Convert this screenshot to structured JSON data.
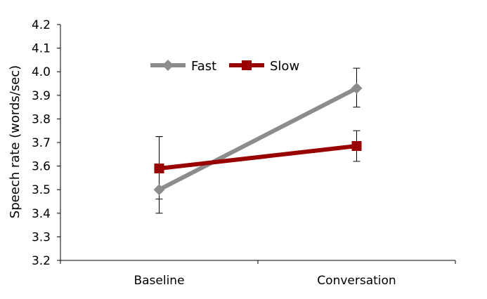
{
  "chart_data": {
    "type": "line",
    "title": "",
    "xlabel": "",
    "ylabel": "Speech rate (words/sec)",
    "categories": [
      "Baseline",
      "Conversation"
    ],
    "ylim": [
      3.2,
      4.2
    ],
    "yticks": [
      "3.2",
      "3.3",
      "3.4",
      "3.5",
      "3.6",
      "3.7",
      "3.8",
      "3.9",
      "4.0",
      "4.1",
      "4.2"
    ],
    "grid": false,
    "legend_position": "top-left",
    "series": [
      {
        "name": "Fast",
        "values": [
          3.5,
          3.93
        ],
        "error_low": [
          3.4,
          3.85
        ],
        "error_high": [
          3.725,
          4.015
        ],
        "color": "#8c8c8c",
        "marker": "diamond"
      },
      {
        "name": "Slow",
        "values": [
          3.59,
          3.685
        ],
        "error_low": [
          3.46,
          3.62
        ],
        "error_high": [
          3.725,
          3.75
        ],
        "color": "#990000",
        "marker": "square"
      }
    ]
  }
}
